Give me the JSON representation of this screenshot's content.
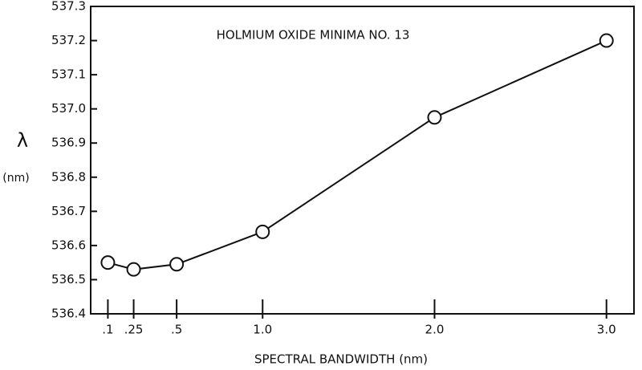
{
  "chart_data": {
    "type": "line",
    "title": "HOLMIUM OXIDE MINIMA NO. 13",
    "y_label": "λ",
    "y_unit": "(nm)",
    "x_label": "SPECTRAL BANDWIDTH (nm)",
    "x": [
      0.1,
      0.25,
      0.5,
      1.0,
      2.0,
      3.0
    ],
    "series": [
      {
        "name": "Holmium oxide minimum no. 13",
        "color": "#111111",
        "values": [
          536.55,
          536.53,
          536.545,
          536.64,
          536.975,
          537.2
        ]
      }
    ],
    "xlim": [
      0,
      3.16
    ],
    "xticks": [
      {
        "value": 0.1,
        "label": ".1"
      },
      {
        "value": 0.25,
        "label": ".25"
      },
      {
        "value": 0.5,
        "label": ".5"
      },
      {
        "value": 1.0,
        "label": "1.0"
      },
      {
        "value": 2.0,
        "label": "2.0"
      },
      {
        "value": 3.0,
        "label": "3.0"
      }
    ],
    "ylim": [
      536.4,
      537.3
    ],
    "yticks": [
      536.4,
      536.5,
      536.6,
      536.7,
      536.8,
      536.9,
      {
        "value": 537.0,
        "label": "537.0"
      },
      537.1,
      537.2,
      537.3
    ],
    "grid": false
  }
}
